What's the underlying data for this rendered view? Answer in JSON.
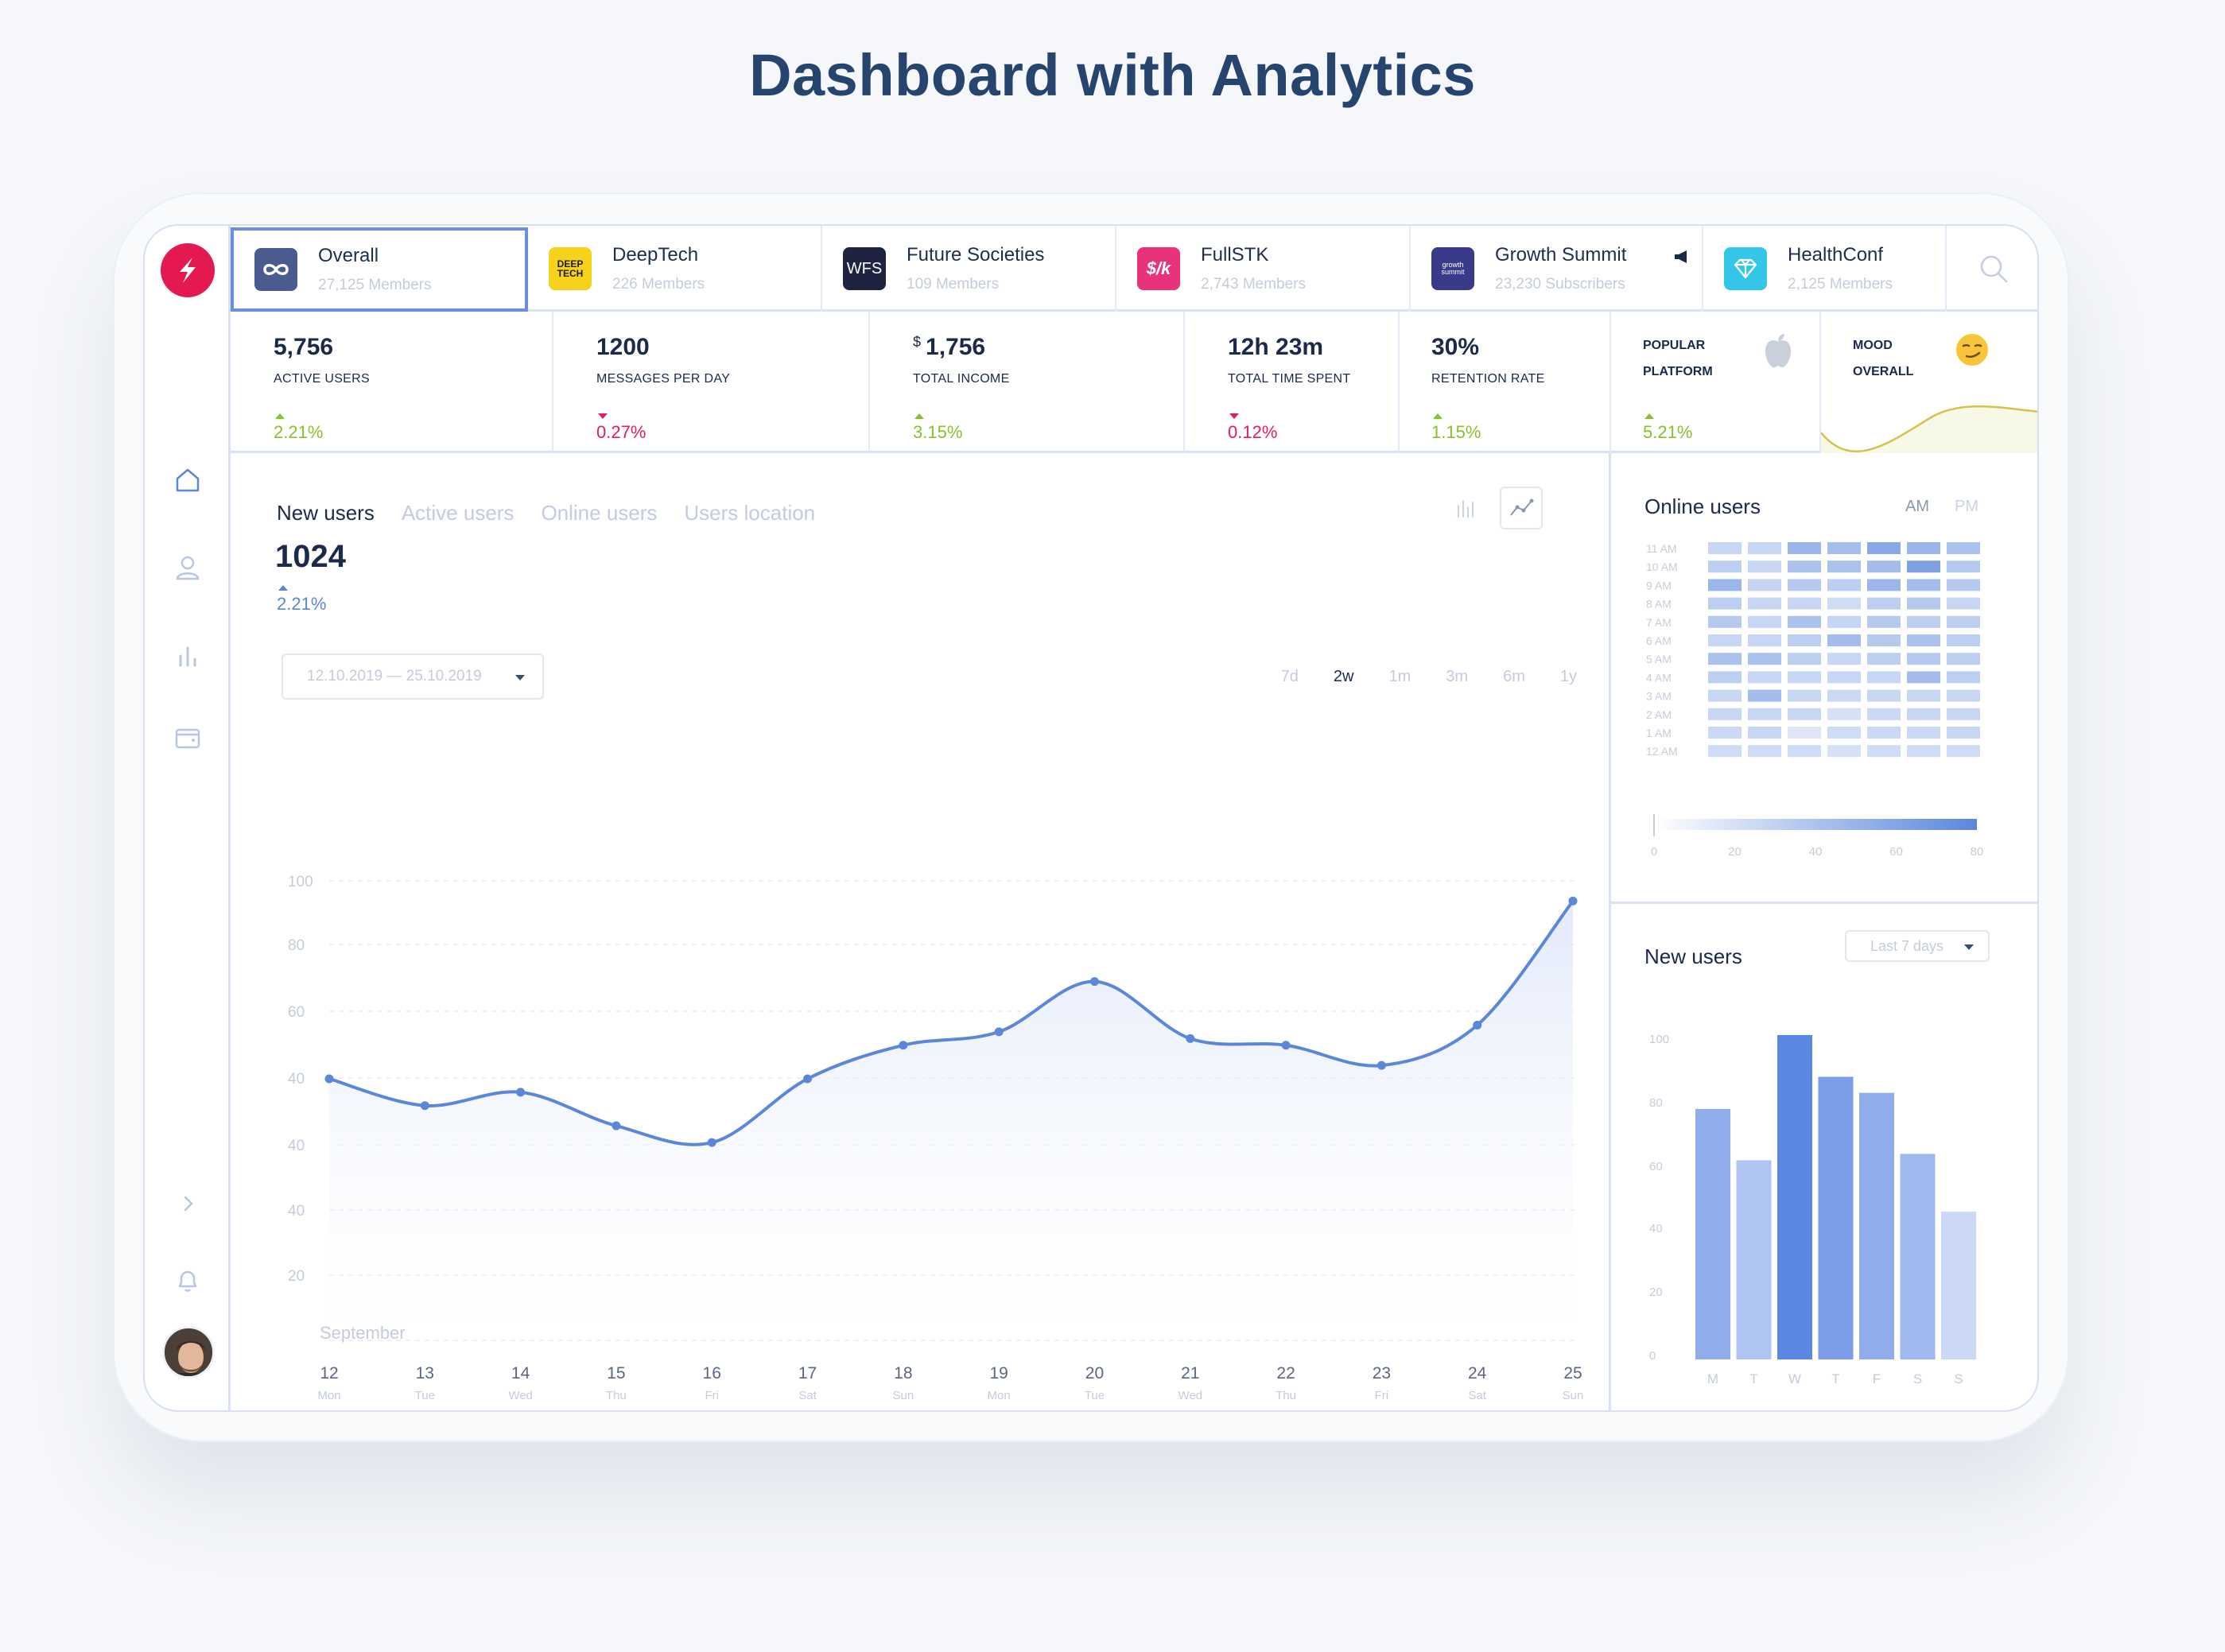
{
  "page": {
    "title": "Dashboard with Analytics"
  },
  "tabs": [
    {
      "name": "Overall",
      "sub": "27,125 Members",
      "logo_text": "∞",
      "logo_color": "#4a5c8f"
    },
    {
      "name": "DeepTech",
      "sub": "226 Members",
      "logo_text": "DEEP TECH",
      "logo_color": "#f6d21c"
    },
    {
      "name": "Future Societies",
      "sub": "109 Members",
      "logo_text": "WFS",
      "logo_color": "#1d2340"
    },
    {
      "name": "FullSTK",
      "sub": "2,743 Members",
      "logo_text": "$/k",
      "logo_color": "#e8337a"
    },
    {
      "name": "Growth Summit",
      "sub": "23,230 Subscribers",
      "logo_text": "growth summit",
      "logo_color": "#3a3a8a"
    },
    {
      "name": "HealthConf",
      "sub": "2,125 Members",
      "logo_text": "♡",
      "logo_color": "#33c6e8"
    }
  ],
  "stats": {
    "active_users": {
      "value": "5,756",
      "label": "ACTIVE USERS",
      "change": "2.21%"
    },
    "messages": {
      "value": "1200",
      "label": "MESSAGES PER DAY",
      "change": "0.27%"
    },
    "income": {
      "currency": "$",
      "value": "1,756",
      "label": "TOTAL INCOME",
      "change": "3.15%"
    },
    "time": {
      "value": "12h 23m",
      "label": "TOTAL TIME SPENT",
      "change": "0.12%"
    },
    "retention": {
      "value": "30%",
      "label": "RETENTION RATE",
      "change": "1.15%"
    },
    "platform": {
      "line1": "POPULAR",
      "line2": "PLATFORM",
      "change": "5.21%",
      "icon": "apple-icon"
    },
    "mood": {
      "line1": "MOOD",
      "line2": "OVERALL",
      "icon": "smirk-emoji-icon"
    }
  },
  "main": {
    "tabs": [
      "New users",
      "Active users",
      "Online users",
      "Users location"
    ],
    "value": "1024",
    "change": "2.21%",
    "date_range": "12.10.2019 — 25.10.2019",
    "ranges": [
      "7d",
      "2w",
      "1m",
      "3m",
      "6m",
      "1y"
    ],
    "active_range": "2w",
    "month_label": "September"
  },
  "online_users": {
    "title": "Online users",
    "am": "AM",
    "pm": "PM"
  },
  "new_users_panel": {
    "title": "New users",
    "select": "Last 7 days"
  },
  "chart_data": [
    {
      "type": "line",
      "title": "New users",
      "x": [
        "12",
        "13",
        "14",
        "15",
        "16",
        "17",
        "18",
        "19",
        "20",
        "21",
        "22",
        "23",
        "24",
        "25"
      ],
      "x_sub": [
        "Mon",
        "Tue",
        "Wed",
        "Thu",
        "Fri",
        "Sat",
        "Sun",
        "Mon",
        "Tue",
        "Wed",
        "Thu",
        "Fri",
        "Sat",
        "Sun"
      ],
      "y_ticks": [
        "100",
        "80",
        "60",
        "40",
        "40",
        "40",
        "20"
      ],
      "values": [
        41,
        33,
        37,
        27,
        22,
        41,
        51,
        55,
        70,
        53,
        51,
        45,
        57,
        94
      ],
      "ylim": [
        0,
        100
      ],
      "grid": true,
      "color": "#5b87db"
    },
    {
      "type": "heatmap",
      "title": "Online users",
      "rows": [
        "11 AM",
        "10 AM",
        "9 AM",
        "8 AM",
        "7 AM",
        "6 AM",
        "5 AM",
        "4 AM",
        "3 AM",
        "2 AM",
        "1 AM",
        "12 AM"
      ],
      "cols": 7,
      "values": [
        [
          20,
          20,
          45,
          38,
          55,
          45,
          35
        ],
        [
          25,
          20,
          35,
          35,
          40,
          60,
          30
        ],
        [
          45,
          22,
          30,
          25,
          45,
          40,
          30
        ],
        [
          25,
          20,
          20,
          15,
          25,
          30,
          20
        ],
        [
          30,
          20,
          35,
          22,
          30,
          25,
          25
        ],
        [
          20,
          20,
          25,
          40,
          30,
          35,
          25
        ],
        [
          35,
          35,
          25,
          20,
          25,
          30,
          25
        ],
        [
          25,
          20,
          20,
          20,
          20,
          40,
          25
        ],
        [
          20,
          40,
          20,
          18,
          20,
          20,
          20
        ],
        [
          20,
          20,
          20,
          12,
          18,
          20,
          20
        ],
        [
          18,
          20,
          8,
          15,
          18,
          18,
          20
        ],
        [
          15,
          15,
          15,
          12,
          15,
          15,
          15
        ]
      ],
      "legend_ticks": [
        "0",
        "20",
        "40",
        "60",
        "80"
      ]
    },
    {
      "type": "bar",
      "title": "New users",
      "categories": [
        "M",
        "T",
        "W",
        "T",
        "F",
        "S",
        "S"
      ],
      "values": [
        78,
        62,
        101,
        88,
        83,
        64,
        46
      ],
      "y_ticks": [
        "100",
        "80",
        "60",
        "40",
        "20",
        "0"
      ],
      "ylim": [
        0,
        100
      ],
      "colors": [
        "#8fadea",
        "#afc4f1",
        "#5b87e3",
        "#7b9de8",
        "#8fadea",
        "#9fb8ee",
        "#cbd9f6"
      ]
    }
  ]
}
